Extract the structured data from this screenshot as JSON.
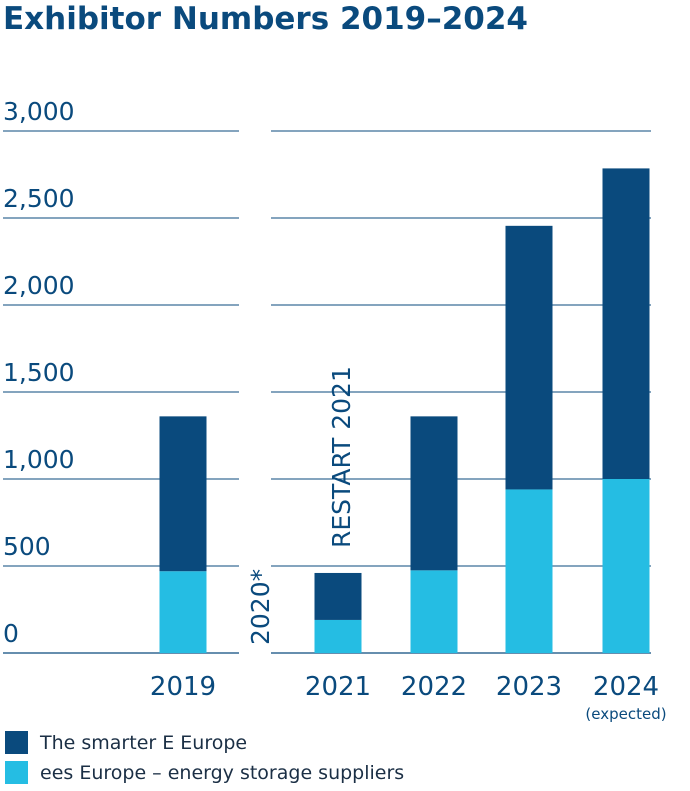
{
  "colors": {
    "smarter_e": "#0a4a7d",
    "ees": "#25bde3",
    "text": "#0a4a7d",
    "grid": "#0a4a7d"
  },
  "chart_data": {
    "type": "bar",
    "stacked": true,
    "title": "Exhibitor Numbers 2019–2024",
    "categories": [
      "2019",
      "2020*",
      "2021",
      "2022",
      "2023",
      "2024"
    ],
    "category_sublabels": [
      "",
      "",
      "",
      "",
      "",
      "(expected)"
    ],
    "series": [
      {
        "name": "ees Europe – energy storage suppliers",
        "color": "#25bde3",
        "values": [
          470,
          null,
          190,
          475,
          940,
          1000
        ]
      },
      {
        "name": "The smarter E Europe",
        "color": "#0a4a7d",
        "values": [
          890,
          null,
          270,
          885,
          1515,
          1785
        ]
      }
    ],
    "annotations": [
      {
        "text": "2020*",
        "category": "2020*"
      },
      {
        "text": "RESTART 2021",
        "category": "2020*"
      }
    ],
    "yticks": [
      "0",
      "500",
      "1,000",
      "1,500",
      "2,000",
      "2,500",
      "3,000"
    ],
    "ylim": [
      0,
      3000
    ],
    "xlabel": "",
    "ylabel": "",
    "grid": true,
    "legend_position": "bottom-left"
  }
}
